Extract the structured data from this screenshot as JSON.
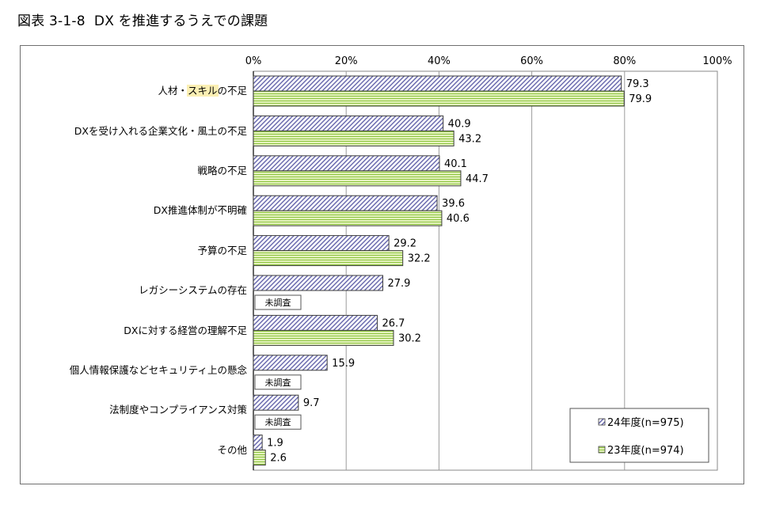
{
  "chart_data": {
    "type": "bar",
    "title": "図表 3-1-8  DX を推進するうえでの課題",
    "categories": [
      "人材・スキルの不足",
      "DXを受け入れる企業文化・風土の不足",
      "戦略の不足",
      "DX推進体制が不明確",
      "予算の不足",
      "レガシーシステムの存在",
      "DXに対する経営の理解不足",
      "個人情報保護などセキュリティ上の懸念",
      "法制度やコンプライアンス対策",
      "その他"
    ],
    "series": [
      {
        "name": "24年度(n=975)",
        "values": [
          79.3,
          40.9,
          40.1,
          39.6,
          29.2,
          27.9,
          26.7,
          15.9,
          9.7,
          1.9
        ],
        "color": "#5757a3",
        "fill": "#fcfcff"
      },
      {
        "name": "23年度(n=974)",
        "values": [
          79.9,
          43.2,
          44.7,
          40.6,
          32.2,
          null,
          30.2,
          null,
          null,
          2.6
        ],
        "color": "#8dc43e",
        "fill": "#eef7cd"
      }
    ],
    "missing_label": "未調査",
    "xlim": [
      0,
      100
    ],
    "xticks": [
      0,
      20,
      40,
      60,
      80,
      100
    ],
    "xtick_labels": [
      "0%",
      "20%",
      "40%",
      "60%",
      "80%",
      "100%"
    ],
    "grid": true,
    "label_highlight": {
      "category_index": 0,
      "char_start": 3,
      "char_end": 6,
      "color": "#fbefb3"
    }
  }
}
